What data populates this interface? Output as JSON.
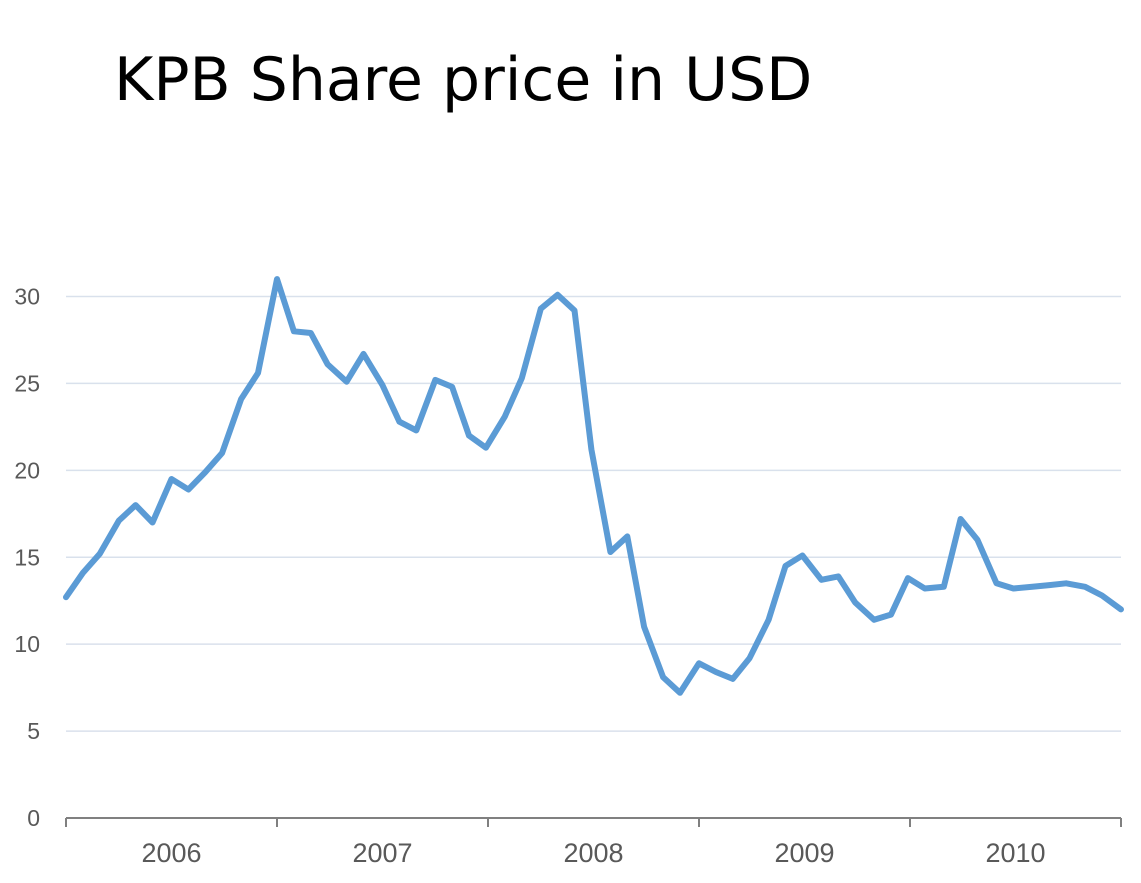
{
  "chart_data": {
    "type": "line",
    "title": "KPB Share price in USD",
    "xlabel": "",
    "ylabel": "",
    "ylim": [
      0,
      30
    ],
    "yticks": [
      0,
      5,
      10,
      15,
      20,
      25,
      30
    ],
    "xlim": [
      2005.6,
      2010.6
    ],
    "xticks": [
      "2006",
      "2007",
      "2008",
      "2009",
      "2010"
    ],
    "grid": true,
    "legend": "none",
    "colors": {
      "line": "#5b9bd5",
      "grid": "#d9e1ec",
      "axis": "#808080",
      "tick_label": "#595959"
    },
    "series": [
      {
        "x": [
          2005.6,
          2005.68,
          2005.76,
          2005.85,
          2005.93,
          2006.01,
          2006.1,
          2006.18,
          2006.26,
          2006.34,
          2006.43,
          2006.51,
          2006.6,
          2006.68,
          2006.76,
          2006.84,
          2006.93,
          2007.01,
          2007.1,
          2007.18,
          2007.26,
          2007.35,
          2007.43,
          2007.51,
          2007.59,
          2007.68,
          2007.76,
          2007.85,
          2007.93,
          2008.01,
          2008.09,
          2008.18,
          2008.26,
          2008.34,
          2008.43,
          2008.51,
          2008.6,
          2008.68,
          2008.76,
          2008.84,
          2008.93,
          2009.01,
          2009.09,
          2009.18,
          2009.26,
          2009.34,
          2009.43,
          2009.51,
          2009.59,
          2009.67,
          2009.76,
          2009.84,
          2009.92,
          2010.01,
          2010.09,
          2010.18,
          2010.26,
          2010.34,
          2010.43,
          2010.51,
          2010.6
        ],
        "values": [
          12.7,
          14.1,
          15.2,
          17.1,
          18.0,
          17.0,
          19.5,
          18.9,
          19.9,
          21.0,
          24.1,
          25.6,
          31.0,
          28.0,
          27.9,
          26.1,
          25.1,
          26.7,
          24.9,
          22.8,
          22.3,
          25.2,
          24.8,
          22.0,
          21.3,
          23.1,
          25.3,
          29.3,
          30.1,
          29.2,
          21.2,
          15.3,
          16.2,
          11.0,
          8.1,
          7.2,
          8.9,
          8.4,
          8.0,
          9.2,
          11.4,
          14.5,
          15.1,
          13.7,
          13.9,
          12.4,
          11.4,
          11.7,
          13.8,
          13.2,
          13.3,
          17.2,
          16.0,
          13.5,
          13.2,
          13.3,
          13.4,
          13.5,
          13.3,
          12.8,
          12.0
        ]
      }
    ]
  }
}
